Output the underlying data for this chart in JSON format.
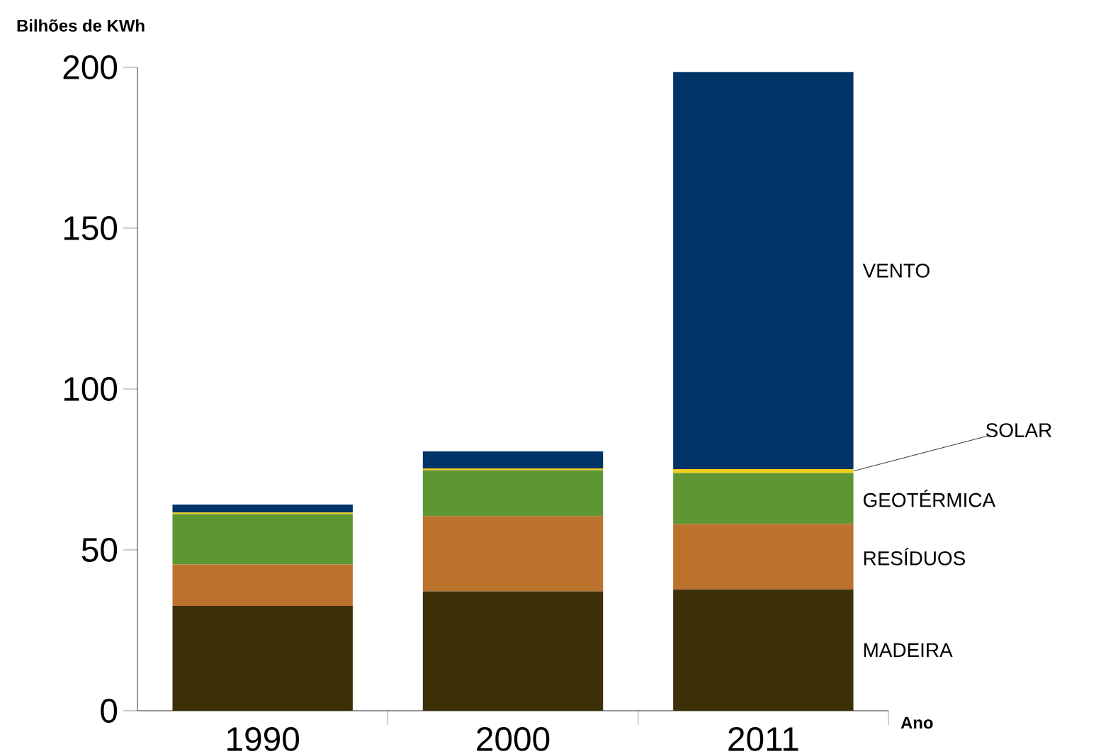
{
  "chart_data": {
    "type": "bar",
    "stacked": true,
    "xlabel": "Ano",
    "ylabel": "Bilhões de KWh",
    "categories": [
      "1990",
      "2000",
      "2011"
    ],
    "ylim": [
      0,
      200
    ],
    "yticks": [
      0,
      50,
      100,
      150,
      200
    ],
    "series": [
      {
        "name": "MADEIRA",
        "color": "#3d3008",
        "values": [
          32.6,
          37.1,
          37.7
        ]
      },
      {
        "name": "RESÍDUOS",
        "color": "#bb722c",
        "values": [
          12.9,
          23.4,
          20.4
        ]
      },
      {
        "name": "GEOTÉRMICA",
        "color": "#5e9633",
        "values": [
          15.6,
          14.3,
          15.8
        ]
      },
      {
        "name": "SOLAR",
        "color": "#f2cc1a",
        "values": [
          0.5,
          0.5,
          1.2
        ]
      },
      {
        "name": "VENTO",
        "color": "#003366",
        "values": [
          2.5,
          5.3,
          123.4
        ]
      }
    ]
  }
}
